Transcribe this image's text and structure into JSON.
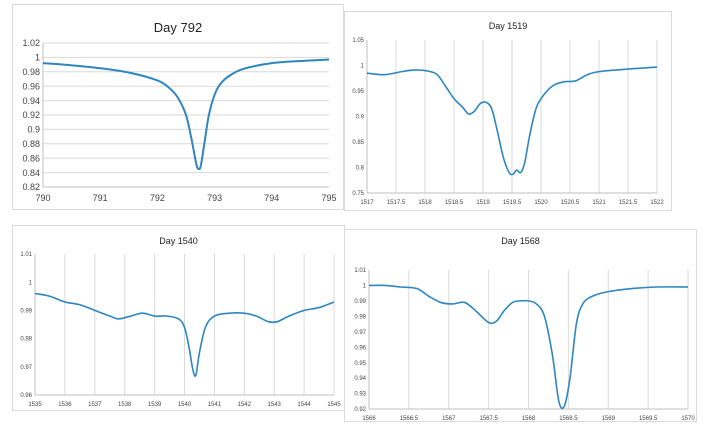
{
  "line_color": "#2e86c1",
  "chart_data": [
    {
      "type": "line",
      "title": "Day 792",
      "xlim": [
        790,
        795
      ],
      "ylim": [
        0.82,
        1.02
      ],
      "xticks": [
        "790",
        "791",
        "792",
        "793",
        "794",
        "795"
      ],
      "yticks": [
        "0.82",
        "0.84",
        "0.86",
        "0.88",
        "0.9",
        "0.92",
        "0.94",
        "0.96",
        "0.98",
        "1",
        "1.02"
      ],
      "grid": "horizontal",
      "x": [
        790,
        790.5,
        791,
        791.5,
        792,
        792.2,
        792.35,
        792.5,
        792.6,
        792.68,
        792.72,
        792.76,
        792.82,
        792.9,
        793.0,
        793.1,
        793.25,
        793.5,
        794,
        794.5,
        795
      ],
      "y": [
        0.992,
        0.989,
        0.985,
        0.979,
        0.968,
        0.958,
        0.945,
        0.92,
        0.885,
        0.852,
        0.845,
        0.85,
        0.88,
        0.92,
        0.948,
        0.963,
        0.974,
        0.984,
        0.992,
        0.995,
        0.997
      ]
    },
    {
      "type": "line",
      "title": "Day 1519",
      "xlim": [
        1517,
        1522
      ],
      "ylim": [
        0.75,
        1.05
      ],
      "xticks": [
        "1517",
        "1517.5",
        "1518",
        "1518.5",
        "1519",
        "1519.5",
        "1520",
        "1520.5",
        "1521",
        "1521.5",
        "1522"
      ],
      "yticks": [
        "0.75",
        "0.8",
        "0.85",
        "0.9",
        "0.95",
        "1",
        "1.05"
      ],
      "grid": "vertical",
      "x": [
        1517,
        1517.3,
        1517.6,
        1517.8,
        1518,
        1518.2,
        1518.35,
        1518.5,
        1518.65,
        1518.75,
        1518.85,
        1518.95,
        1519.05,
        1519.15,
        1519.25,
        1519.35,
        1519.45,
        1519.52,
        1519.58,
        1519.65,
        1519.72,
        1519.8,
        1519.9,
        1520,
        1520.2,
        1520.4,
        1520.6,
        1520.8,
        1521,
        1521.5,
        1522
      ],
      "y": [
        0.985,
        0.982,
        0.988,
        0.991,
        0.99,
        0.983,
        0.96,
        0.935,
        0.918,
        0.905,
        0.91,
        0.925,
        0.928,
        0.915,
        0.87,
        0.82,
        0.79,
        0.787,
        0.795,
        0.79,
        0.81,
        0.86,
        0.91,
        0.935,
        0.96,
        0.968,
        0.97,
        0.982,
        0.988,
        0.993,
        0.997
      ]
    },
    {
      "type": "line",
      "title": "Day 1540",
      "xlim": [
        1535,
        1545
      ],
      "ylim": [
        0.96,
        1.01
      ],
      "xticks": [
        "1535",
        "1536",
        "1537",
        "1538",
        "1539",
        "1540",
        "1541",
        "1542",
        "1543",
        "1544",
        "1545"
      ],
      "yticks": [
        "0.96",
        "0.97",
        "0.98",
        "0.99",
        "1",
        "1.01"
      ],
      "grid": "vertical",
      "x": [
        1535,
        1535.5,
        1536,
        1536.5,
        1537,
        1537.5,
        1537.8,
        1538.2,
        1538.6,
        1539,
        1539.4,
        1539.8,
        1540,
        1540.15,
        1540.28,
        1540.38,
        1540.5,
        1540.7,
        1541,
        1541.5,
        1542,
        1542.4,
        1542.8,
        1543.1,
        1543.5,
        1544,
        1544.5,
        1545
      ],
      "y": [
        0.996,
        0.995,
        0.993,
        0.992,
        0.99,
        0.988,
        0.987,
        0.988,
        0.989,
        0.988,
        0.988,
        0.987,
        0.984,
        0.977,
        0.969,
        0.967,
        0.975,
        0.984,
        0.988,
        0.989,
        0.989,
        0.988,
        0.986,
        0.986,
        0.988,
        0.99,
        0.991,
        0.993
      ]
    },
    {
      "type": "line",
      "title": "Day 1568",
      "xlim": [
        1566,
        1570
      ],
      "ylim": [
        0.92,
        1.01
      ],
      "xticks": [
        "1566",
        "1566.5",
        "1567",
        "1567.5",
        "1568",
        "1568.5",
        "1569",
        "1569.5",
        "1570"
      ],
      "yticks": [
        "0.92",
        "0.93",
        "0.94",
        "0.95",
        "0.96",
        "0.97",
        "0.98",
        "0.99",
        "1",
        "1.01"
      ],
      "grid": "vertical",
      "x": [
        1566,
        1566.2,
        1566.4,
        1566.6,
        1566.75,
        1566.9,
        1567.05,
        1567.2,
        1567.35,
        1567.5,
        1567.6,
        1567.7,
        1567.8,
        1567.9,
        1568,
        1568.1,
        1568.2,
        1568.3,
        1568.38,
        1568.45,
        1568.52,
        1568.6,
        1568.68,
        1568.8,
        1569,
        1569.3,
        1569.6,
        1570
      ],
      "y": [
        1.0,
        1.0,
        0.999,
        0.998,
        0.993,
        0.989,
        0.988,
        0.989,
        0.983,
        0.976,
        0.977,
        0.984,
        0.989,
        0.99,
        0.99,
        0.988,
        0.98,
        0.955,
        0.925,
        0.922,
        0.94,
        0.975,
        0.988,
        0.993,
        0.996,
        0.998,
        0.999,
        0.999
      ]
    }
  ]
}
